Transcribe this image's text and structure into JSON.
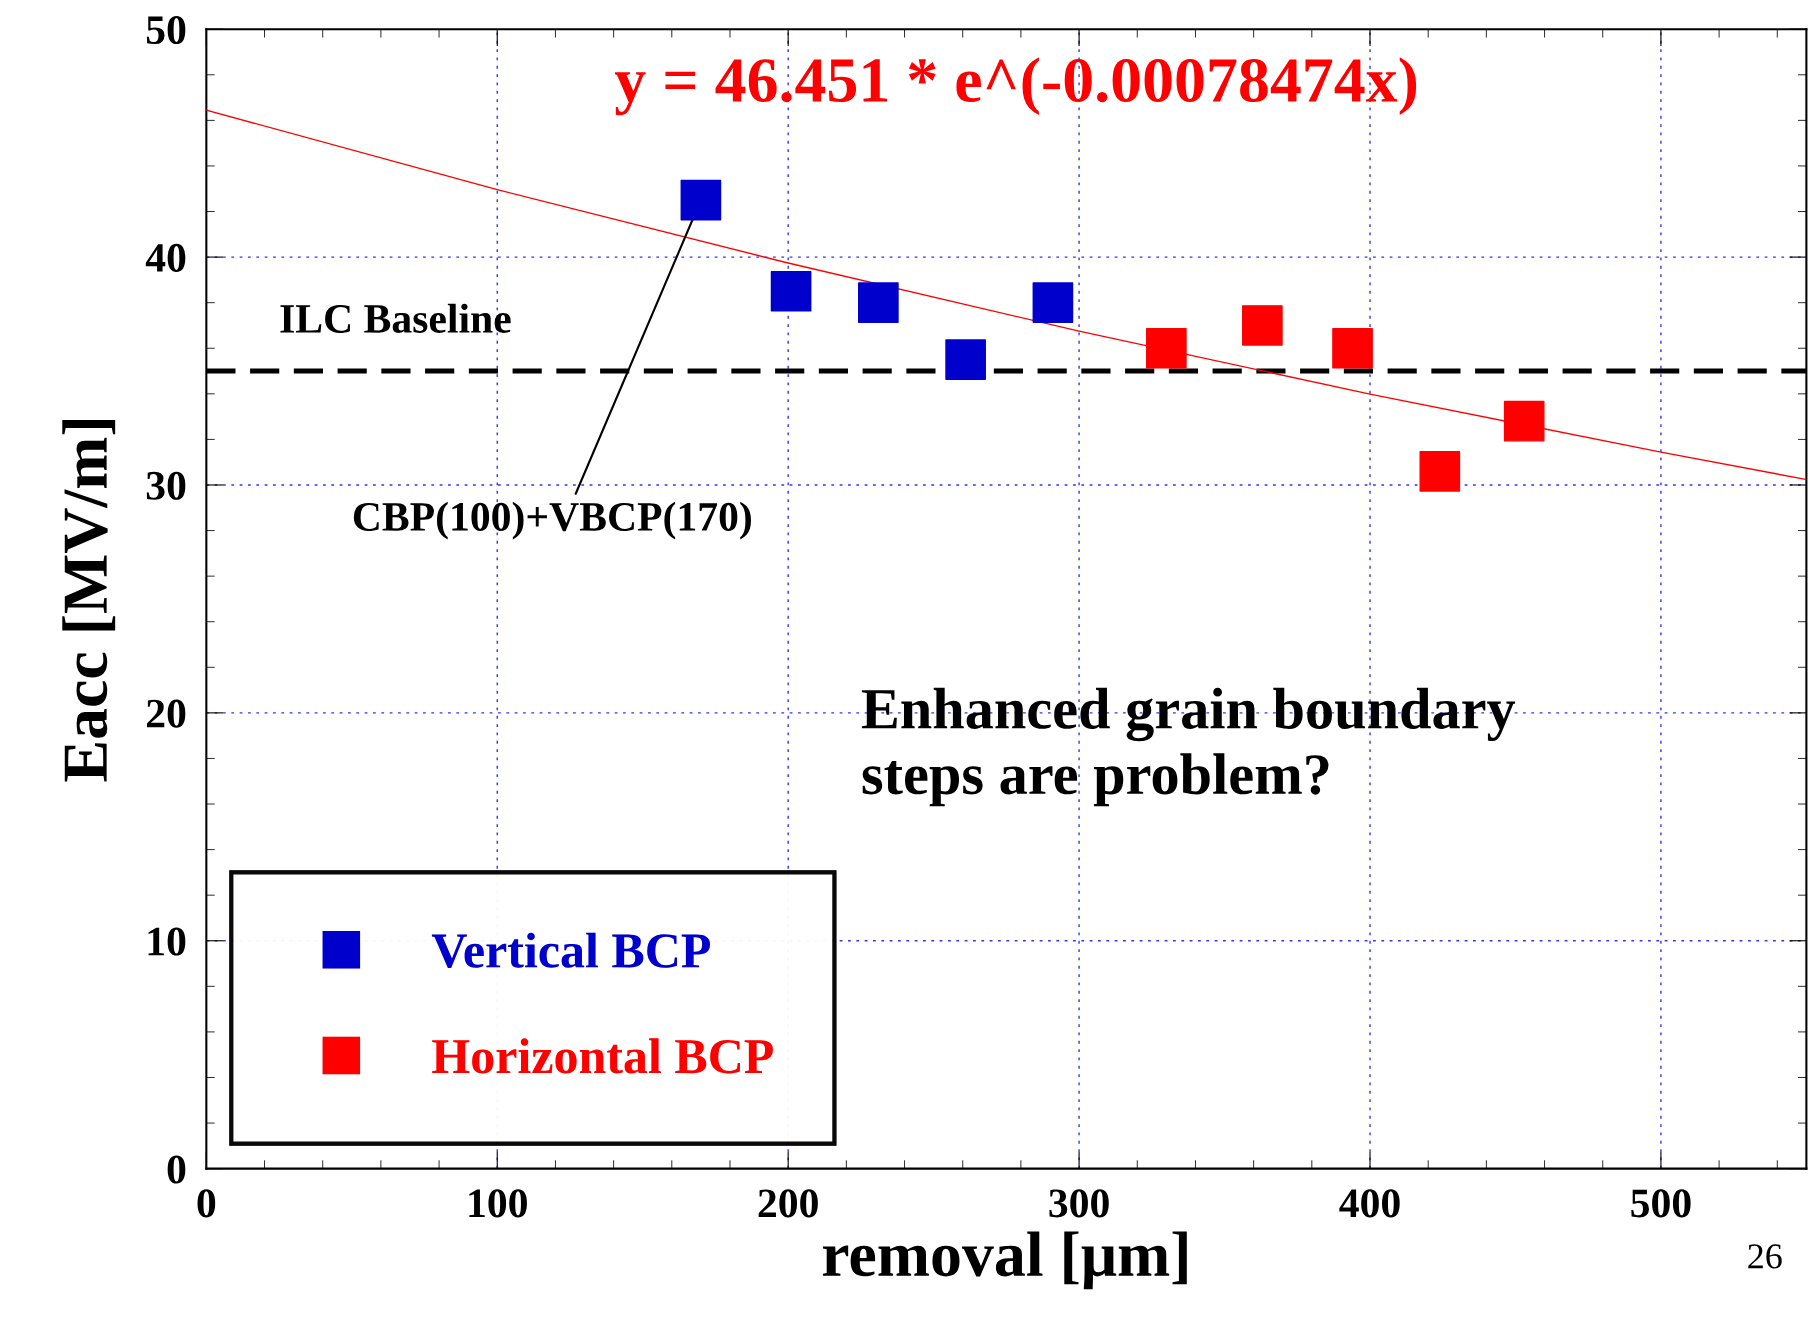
{
  "chart_data": {
    "type": "scatter",
    "xlabel": "removal [μm]",
    "ylabel": "Eacc [MV/m]",
    "xlim": [
      0,
      550
    ],
    "ylim": [
      0,
      50
    ],
    "xticks": [
      0,
      100,
      200,
      300,
      400,
      500
    ],
    "yticks": [
      0,
      10,
      20,
      30,
      40,
      50
    ],
    "grid": true,
    "marker": "square",
    "legend": "bottom left",
    "series": [
      {
        "name": "Vertical BCP",
        "color": "#0000cc",
        "x": [
          170,
          201,
          231,
          261,
          291
        ],
        "values": [
          42.5,
          38.5,
          38.0,
          35.5,
          38.0
        ]
      },
      {
        "name": "Horizontal BCP",
        "color": "#ff0000",
        "x": [
          330,
          363,
          394,
          424,
          453
        ],
        "values": [
          36.0,
          37.0,
          36.0,
          30.6,
          32.8
        ]
      },
      {
        "name": "y = 46.451 * e^(-0.00078474x)",
        "type": "line",
        "color": "#ff0000",
        "marker": "none",
        "x": [
          0,
          100,
          200,
          300,
          400,
          500,
          550
        ],
        "values": [
          46.45,
          42.96,
          39.74,
          36.75,
          33.99,
          31.44,
          30.24
        ]
      }
    ],
    "ref_lines": [
      {
        "axis": "y",
        "value": 35,
        "label": "ILC Baseline",
        "color": "#000000",
        "line_style": "dashed"
      }
    ],
    "annotations": [
      {
        "text": "CBP(100)+VBCP(170)",
        "x": 170,
        "y": 42.5
      },
      "Enhanced grain boundary\nsteps are problem?",
      "26"
    ]
  }
}
